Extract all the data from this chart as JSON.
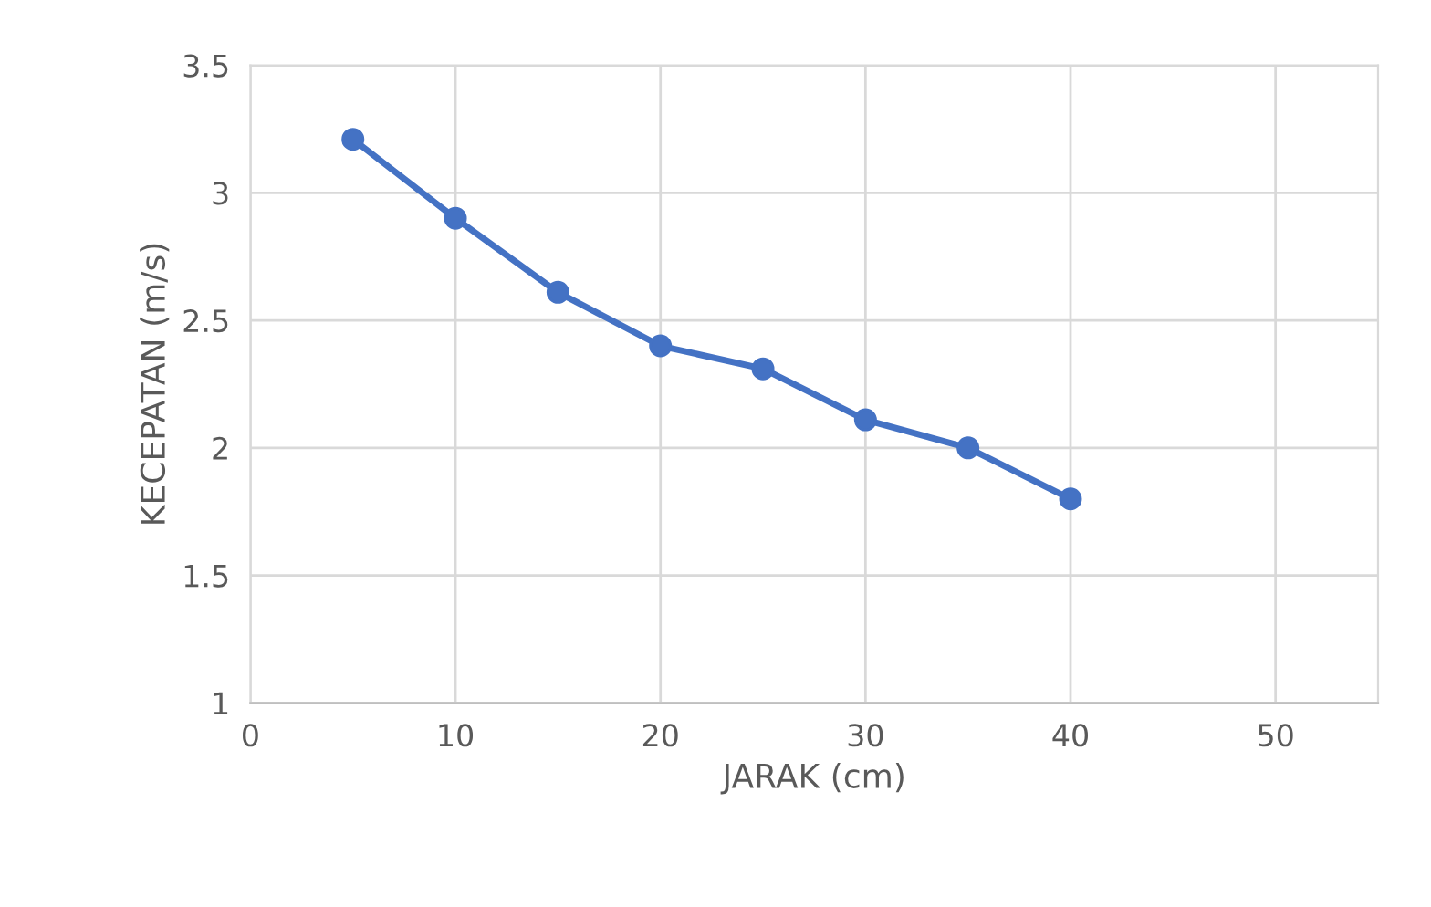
{
  "chart_data": {
    "type": "line",
    "xlabel": "JARAK (cm)",
    "ylabel": "KECEPATAN (m/s)",
    "x": [
      5,
      10,
      15,
      20,
      25,
      30,
      35,
      40
    ],
    "series": [
      {
        "color": "#4472c4",
        "values": [
          3.21,
          2.9,
          2.61,
          2.4,
          2.31,
          2.11,
          2.0,
          1.8
        ]
      }
    ],
    "xlim": [
      0,
      55
    ],
    "xticks": [
      0,
      10,
      20,
      30,
      40,
      50
    ],
    "ylim": [
      1,
      3.5
    ],
    "yticks": [
      1,
      1.5,
      2,
      2.5,
      3,
      3.5
    ],
    "grid": true,
    "marker": "circle",
    "line_style": "solid"
  }
}
